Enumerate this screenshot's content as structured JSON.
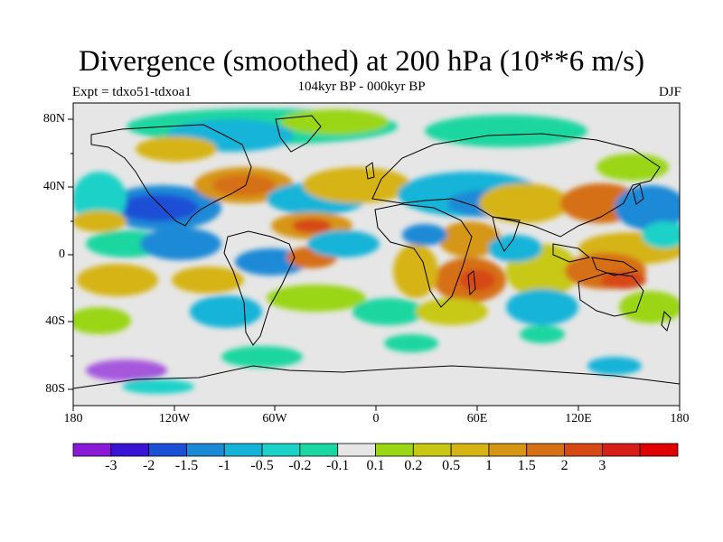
{
  "title": "Divergence (smoothed) at 200 hPa (10**6 m/s)",
  "subtitle": "104kyr BP - 000kyr BP",
  "experiment": "Expt = tdxo51-tdxoa1",
  "season": "DJF",
  "lat_ticks": [
    "80N",
    "40N",
    "0",
    "40S",
    "80S"
  ],
  "lon_ticks": [
    "180",
    "120W",
    "60W",
    "0",
    "60E",
    "120E",
    "180"
  ],
  "colorbar": {
    "colors": [
      "#8a1ad8",
      "#3a14d6",
      "#1a4fd6",
      "#1a8ad6",
      "#14b4d8",
      "#1ad2c8",
      "#1ad6a0",
      "#e6e6e6",
      "#9ad614",
      "#c8c814",
      "#d6b414",
      "#d69614",
      "#d67014",
      "#d64814",
      "#d61e14",
      "#e00000"
    ],
    "labels": [
      "-3",
      "-2",
      "-1.5",
      "-1",
      "-0.5",
      "-0.2",
      "-0.1",
      "0.1",
      "0.2",
      "0.5",
      "1",
      "1.5",
      "2",
      "3"
    ]
  }
}
